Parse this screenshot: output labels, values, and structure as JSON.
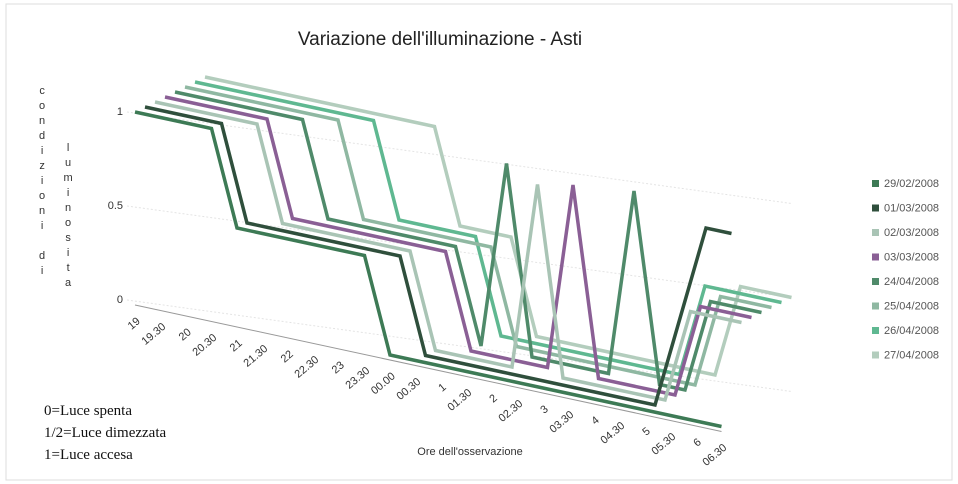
{
  "chart_data": {
    "type": "line3d",
    "title": "Variazione dell'illuminazione - Asti",
    "x_label": "Ore dell'osservazione",
    "y_label": [
      "condizioni di",
      "luminosita"
    ],
    "notes": [
      "0=Luce spenta",
      "1/2=Luce dimezzata",
      "1=Luce accesa"
    ],
    "categories": [
      "19",
      "19.30",
      "20",
      "20.30",
      "21",
      "21.30",
      "22",
      "22.30",
      "23",
      "23.30",
      "00.00",
      "00.30",
      "1",
      "01.30",
      "2",
      "02.30",
      "3",
      "03.30",
      "4",
      "04.30",
      "5",
      "05.30",
      "6",
      "06.30"
    ],
    "ylim": [
      0,
      1
    ],
    "yticks": [
      0,
      0.5,
      1
    ],
    "series": [
      {
        "name": "29/02/2008",
        "color": "#3d7a55",
        "values": [
          1,
          1,
          1,
          1,
          0.5,
          0.5,
          0.5,
          0.5,
          0.5,
          0.5,
          0,
          0,
          0,
          0,
          0,
          0,
          0,
          0,
          0,
          0,
          0,
          0,
          0,
          0
        ]
      },
      {
        "name": "01/03/2008",
        "color": "#2f4f3c",
        "values": [
          1,
          1,
          1,
          1,
          0.5,
          0.5,
          0.5,
          0.5,
          0.5,
          0.5,
          0.5,
          0,
          0,
          0,
          0,
          0,
          0,
          0,
          0,
          0,
          0,
          0.5,
          1,
          1
        ]
      },
      {
        "name": "02/03/2008",
        "color": "#a9c4b5",
        "values": [
          1,
          1,
          1,
          1,
          1,
          0.5,
          0.5,
          0.5,
          0.5,
          0.5,
          0.5,
          0,
          0,
          0,
          0,
          1,
          0,
          0,
          0,
          0,
          0,
          0.5,
          0.5,
          0.5
        ]
      },
      {
        "name": "03/03/2008",
        "color": "#8a5f95",
        "values": [
          1,
          1,
          1,
          1,
          1,
          0.5,
          0.5,
          0.5,
          0.5,
          0.5,
          0.5,
          0.5,
          0,
          0,
          0,
          0,
          1,
          0,
          0,
          0,
          0,
          0.5,
          0.5,
          0.5
        ]
      },
      {
        "name": "24/04/2008",
        "color": "#4f8a6a",
        "values": [
          1,
          1,
          1,
          1,
          1,
          1,
          0.5,
          0.5,
          0.5,
          0.5,
          0.5,
          0.5,
          0,
          1,
          0,
          0,
          0,
          0,
          1,
          0,
          0,
          0.5,
          0.5,
          0.5
        ]
      },
      {
        "name": "25/04/2008",
        "color": "#8fb8a2",
        "values": [
          1,
          1,
          1,
          1,
          1,
          1,
          1,
          0.5,
          0.5,
          0.5,
          0.5,
          0.5,
          0.5,
          0,
          0,
          0,
          0,
          0,
          0,
          0,
          0,
          0.5,
          0.5,
          0.5
        ]
      },
      {
        "name": "26/04/2008",
        "color": "#5fb891",
        "values": [
          1,
          1,
          1,
          1,
          1,
          1,
          1,
          1,
          0.5,
          0.5,
          0.5,
          0.5,
          0,
          0,
          0,
          0,
          0,
          0,
          0,
          0,
          0.5,
          0.5,
          0.5,
          0.5
        ]
      },
      {
        "name": "27/04/2008",
        "color": "#b3cdbd",
        "values": [
          1,
          1,
          1,
          1,
          1,
          1,
          1,
          1,
          1,
          1,
          0.5,
          0.5,
          0.5,
          0,
          0,
          0,
          0,
          0,
          0,
          0,
          0,
          0.5,
          0.5,
          0.5
        ]
      }
    ]
  }
}
